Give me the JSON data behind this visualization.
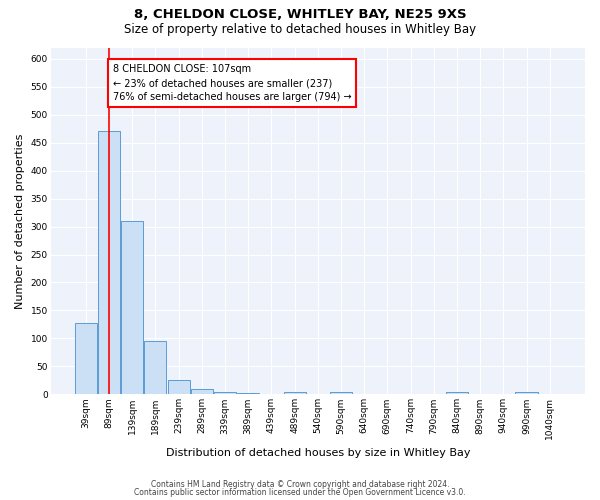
{
  "title1": "8, CHELDON CLOSE, WHITLEY BAY, NE25 9XS",
  "title2": "Size of property relative to detached houses in Whitley Bay",
  "xlabel": "Distribution of detached houses by size in Whitley Bay",
  "ylabel": "Number of detached properties",
  "categories": [
    "39sqm",
    "89sqm",
    "139sqm",
    "189sqm",
    "239sqm",
    "289sqm",
    "339sqm",
    "389sqm",
    "439sqm",
    "489sqm",
    "540sqm",
    "590sqm",
    "640sqm",
    "690sqm",
    "740sqm",
    "790sqm",
    "840sqm",
    "890sqm",
    "940sqm",
    "990sqm",
    "1040sqm"
  ],
  "values": [
    128,
    470,
    310,
    96,
    25,
    10,
    5,
    2,
    0,
    5,
    0,
    5,
    0,
    0,
    0,
    0,
    5,
    0,
    0,
    5,
    0
  ],
  "bar_color": "#cce0f5",
  "bar_edge_color": "#5b9bd5",
  "red_line_x": 1.0,
  "annotation_title": "8 CHELDON CLOSE: 107sqm",
  "annotation_line2": "← 23% of detached houses are smaller (237)",
  "annotation_line3": "76% of semi-detached houses are larger (794) →",
  "ylim": [
    0,
    620
  ],
  "yticks": [
    0,
    50,
    100,
    150,
    200,
    250,
    300,
    350,
    400,
    450,
    500,
    550,
    600
  ],
  "footer1": "Contains HM Land Registry data © Crown copyright and database right 2024.",
  "footer2": "Contains public sector information licensed under the Open Government Licence v3.0.",
  "background_color": "#eef2fb",
  "title1_fontsize": 9.5,
  "title2_fontsize": 8.5,
  "xlabel_fontsize": 8,
  "ylabel_fontsize": 8,
  "tick_fontsize": 6.5,
  "footer_fontsize": 5.5
}
